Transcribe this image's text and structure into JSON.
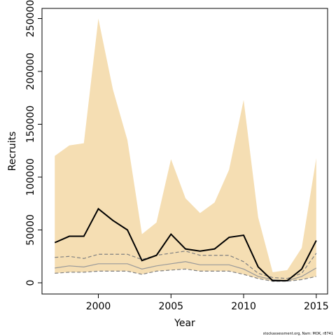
{
  "chart_data": {
    "type": "line",
    "xlabel": "Year",
    "ylabel": "Recruits",
    "footer": "stockassessment.org, Nam: MOK, r8741",
    "x": [
      1997,
      1998,
      1999,
      2000,
      2001,
      2002,
      2003,
      2004,
      2005,
      2006,
      2007,
      2008,
      2009,
      2010,
      2011,
      2012,
      2013,
      2014,
      2015
    ],
    "band": {
      "color": "#f5deb3",
      "upper": [
        120000,
        130000,
        132000,
        250000,
        183000,
        135000,
        46000,
        57000,
        117000,
        80000,
        66000,
        76000,
        107000,
        173000,
        62000,
        10000,
        12000,
        33000,
        118000
      ],
      "lower": [
        9000,
        10000,
        10000,
        11000,
        11000,
        11000,
        8000,
        11000,
        12000,
        13000,
        11000,
        11000,
        11000,
        8000,
        4000,
        1500,
        1500,
        3000,
        6000
      ]
    },
    "series": [
      {
        "color": "#808080",
        "dash": true,
        "values": [
          24000,
          25000,
          23000,
          27000,
          27000,
          27000,
          22000,
          26000,
          28000,
          30000,
          26000,
          26000,
          26000,
          20000,
          9000,
          5000,
          4000,
          9000,
          28000
        ]
      },
      {
        "color": "#999999",
        "dash": false,
        "values": [
          14000,
          16000,
          15000,
          18000,
          18000,
          18000,
          13000,
          16000,
          18000,
          20000,
          17000,
          17000,
          17000,
          13000,
          6000,
          3000,
          2000,
          6000,
          14000
        ]
      },
      {
        "color": "#808080",
        "dash": true,
        "values": [
          9000,
          10000,
          10000,
          11000,
          11000,
          11000,
          8000,
          11000,
          12000,
          13000,
          11000,
          11000,
          11000,
          8000,
          4000,
          1500,
          1500,
          3000,
          6000
        ]
      },
      {
        "color": "#000000",
        "dash": false,
        "width": 2,
        "values": [
          38000,
          44000,
          44000,
          70000,
          59000,
          50000,
          21000,
          26000,
          46000,
          32000,
          30000,
          32000,
          43000,
          45000,
          15000,
          2000,
          2000,
          13000,
          40000
        ]
      }
    ],
    "xlim": [
      1996.12,
      2015.78
    ],
    "xticks": [
      2000,
      2005,
      2010,
      2015
    ],
    "ylim": [
      -10600,
      259600
    ],
    "yticks": [
      0,
      50000,
      100000,
      150000,
      200000,
      250000
    ]
  }
}
